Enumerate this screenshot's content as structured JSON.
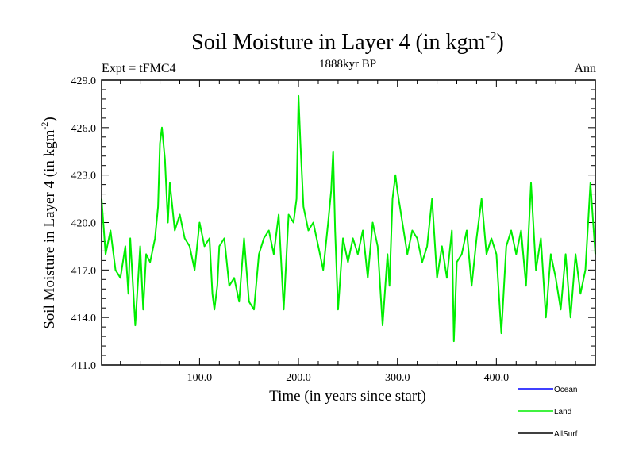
{
  "chart_data": {
    "type": "line",
    "title": "Soil Moisture in Layer 4 (in kgm",
    "title_sup": "-2",
    "title_close": ")",
    "subtitle": "1888kyr BP",
    "left_label": "Expt = tFMC4",
    "right_label": "Ann",
    "xlabel": "Time (in years since start)",
    "ylabel": "Soil Moisture in Layer 4 (in kgm",
    "ylabel_sup": "-2",
    "ylabel_close": ")",
    "xlim": [
      1,
      500
    ],
    "ylim": [
      411.0,
      429.0
    ],
    "x_ticks": [
      100,
      200,
      300,
      400
    ],
    "x_tick_labels": [
      "100.0",
      "200.0",
      "300.0",
      "400.0"
    ],
    "y_ticks": [
      411,
      414,
      417,
      420,
      423,
      426,
      429
    ],
    "y_tick_labels": [
      "411.0",
      "414.0",
      "417.0",
      "420.0",
      "423.0",
      "426.0",
      "429.0"
    ],
    "legend": [
      {
        "name": "Ocean",
        "color": "#0000ff"
      },
      {
        "name": "Land",
        "color": "#00ee00"
      },
      {
        "name": "AllSurf",
        "color": "#000000"
      }
    ],
    "series": [
      {
        "name": "Land",
        "color": "#00ee00",
        "x": [
          1,
          5,
          10,
          15,
          20,
          25,
          28,
          30,
          35,
          40,
          43,
          46,
          50,
          55,
          58,
          60,
          62,
          65,
          68,
          70,
          75,
          80,
          85,
          90,
          95,
          100,
          105,
          110,
          113,
          115,
          118,
          120,
          125,
          130,
          135,
          140,
          145,
          150,
          155,
          160,
          165,
          170,
          175,
          180,
          185,
          190,
          195,
          198,
          200,
          202,
          205,
          210,
          215,
          220,
          225,
          230,
          233,
          235,
          237,
          240,
          245,
          250,
          255,
          260,
          265,
          270,
          275,
          280,
          285,
          290,
          292,
          295,
          298,
          300,
          305,
          310,
          315,
          320,
          325,
          330,
          335,
          340,
          345,
          350,
          355,
          357,
          360,
          365,
          370,
          375,
          380,
          385,
          390,
          395,
          400,
          405,
          410,
          415,
          420,
          425,
          430,
          435,
          440,
          445,
          450,
          455,
          460,
          465,
          470,
          475,
          480,
          485,
          490,
          495,
          500
        ],
        "values": [
          421.5,
          418.0,
          419.5,
          417.0,
          416.5,
          418.5,
          415.5,
          419.0,
          413.5,
          418.5,
          414.5,
          418.0,
          417.5,
          419.0,
          421.0,
          425.0,
          426.0,
          424.0,
          420.0,
          422.5,
          419.5,
          420.5,
          419.0,
          418.5,
          417.0,
          420.0,
          418.5,
          419.0,
          415.5,
          414.5,
          416.0,
          418.5,
          419.0,
          416.0,
          416.5,
          415.0,
          419.0,
          415.0,
          414.5,
          418.0,
          419.0,
          419.5,
          418.0,
          420.5,
          414.5,
          420.5,
          420.0,
          421.5,
          428.0,
          425.0,
          421.0,
          419.5,
          420.0,
          418.5,
          417.0,
          420.0,
          422.0,
          424.5,
          419.5,
          414.5,
          419.0,
          417.5,
          419.0,
          418.0,
          419.5,
          416.5,
          420.0,
          418.5,
          413.5,
          418.0,
          416.0,
          421.5,
          423.0,
          422.0,
          420.0,
          418.0,
          419.5,
          419.0,
          417.5,
          418.5,
          421.5,
          416.5,
          418.5,
          416.5,
          419.5,
          412.5,
          417.5,
          418.0,
          419.5,
          416.0,
          419.0,
          421.5,
          418.0,
          419.0,
          418.0,
          413.0,
          418.5,
          419.5,
          418.0,
          419.5,
          416.0,
          422.5,
          417.0,
          419.0,
          414.0,
          418.0,
          416.5,
          414.5,
          418.0,
          414.0,
          418.0,
          415.5,
          417.0,
          422.5,
          418.0
        ]
      }
    ]
  }
}
